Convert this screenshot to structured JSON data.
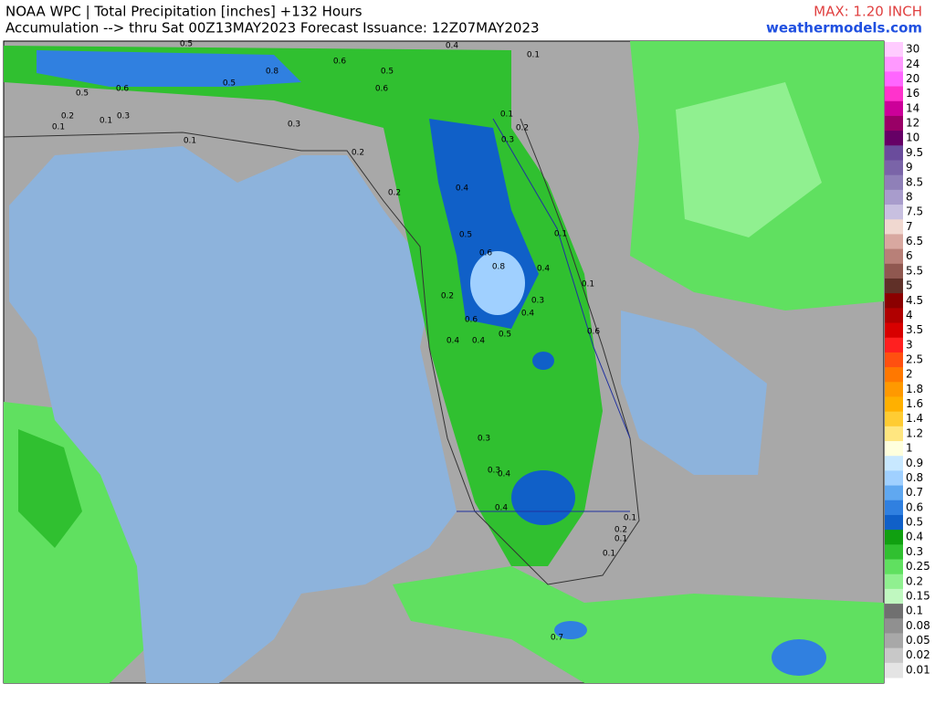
{
  "header": {
    "title": "NOAA WPC | Total Precipitation [inches] +132 Hours",
    "subtitle": "Accumulation --> thru Sat 00Z13MAY2023   Forecast Issuance: 12Z07MAY2023",
    "max": "MAX: 1.20 INCH",
    "site": "weathermodels.com"
  },
  "colorbar": {
    "levels": [
      30,
      24,
      20,
      16,
      14,
      12,
      10,
      9.5,
      9,
      8.5,
      8,
      7.5,
      7,
      6.5,
      6,
      5.5,
      5,
      4.5,
      4,
      3.5,
      3,
      2.5,
      2,
      1.8,
      1.6,
      1.4,
      1.2,
      1,
      0.9,
      0.8,
      0.7,
      0.6,
      0.5,
      0.4,
      0.3,
      0.25,
      0.2,
      0.15,
      0.1,
      0.08,
      0.05,
      0.02,
      0.01
    ],
    "colors": [
      "#ffccff",
      "#ff99ff",
      "#ff66ff",
      "#ff33cc",
      "#cc0099",
      "#990066",
      "#660066",
      "#6a4c9c",
      "#7a64a8",
      "#8f80b8",
      "#a89ccc",
      "#c8c0e0",
      "#f0d8d0",
      "#d8a8a0",
      "#b88078",
      "#905850",
      "#603028",
      "#8b0000",
      "#b00000",
      "#d80000",
      "#ff2020",
      "#ff5010",
      "#ff7800",
      "#ff9900",
      "#ffb000",
      "#ffcc33",
      "#ffe680",
      "#ffffdd",
      "#c8e8ff",
      "#a0d0ff",
      "#60a8f0",
      "#3080e0",
      "#1060c8",
      "#10a010",
      "#30c030",
      "#60e060",
      "#90f090",
      "#c0f8c0",
      "#707070",
      "#909090",
      "#a8a8a8",
      "#c8c8c8",
      "#e4e4e4"
    ]
  },
  "map_labels": [
    "0.5",
    "0.8",
    "0.5",
    "0.6",
    "0.5",
    "0.6",
    "0.5",
    "0.6",
    "0.4",
    "0.1",
    "0.2",
    "0.3",
    "0.2",
    "0.1",
    "0.3",
    "0.1",
    "0.2",
    "0.4",
    "0.6",
    "0.5",
    "0.6",
    "0.8",
    "0.4",
    "0.4",
    "0.3",
    "0.4",
    "0.1",
    "0.1",
    "0.6",
    "0.5",
    "0.4",
    "0.2",
    "0.3",
    "0.3",
    "0.4",
    "0.4",
    "0.1",
    "0.2",
    "0.1",
    "0.1",
    "0.7",
    "0.1",
    "0.2",
    "0.1",
    "0.3"
  ]
}
